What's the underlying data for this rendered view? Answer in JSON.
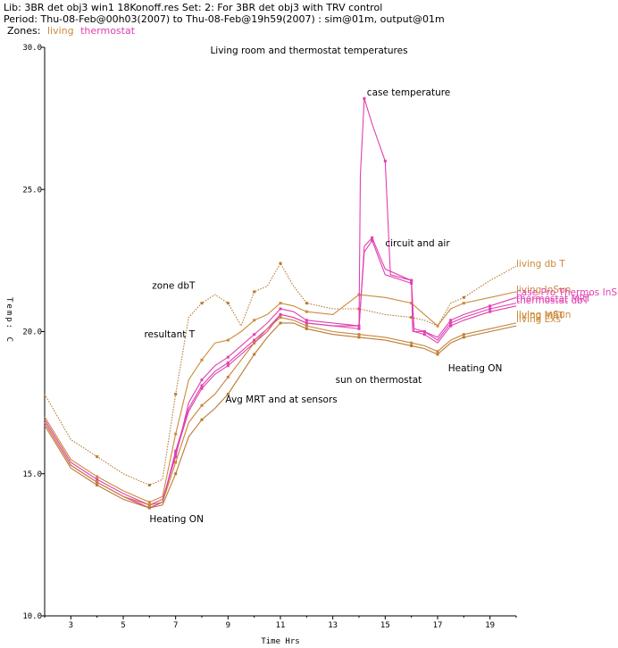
{
  "header": {
    "line1": "Lib: 3BR  det  obj3  win1  18Konoff.res Set:  2: For 3BR  det  obj3 with TRV control",
    "line2": "Period: Thu-08-Feb@00h03(2007) to Thu-08-Feb@19h59(2007) : sim@01m, output@01m",
    "zones_label": "Zones:",
    "zones": [
      {
        "name": "living",
        "color": "#cc8a3a"
      },
      {
        "name": "thermostat",
        "color": "#e040b0"
      }
    ]
  },
  "chart_data": {
    "type": "line",
    "title": "Living room and thermostat temperatures",
    "xlabel": "Time Hrs",
    "ylabel": "Temp: C",
    "xlim": [
      2,
      20
    ],
    "ylim": [
      10,
      30
    ],
    "xticks": [
      "3",
      "5",
      "7",
      "9",
      "11",
      "13",
      "15",
      "17",
      "19"
    ],
    "yticks": [
      "30.0",
      "25.0",
      "20.0",
      "15.0",
      "10.0"
    ],
    "annotations": [
      {
        "text": "case temperature",
        "x": 14.3,
        "y": 28.3
      },
      {
        "text": "circuit and air",
        "x": 15.0,
        "y": 23.0
      },
      {
        "text": "zone dbT",
        "x": 6.1,
        "y": 21.5
      },
      {
        "text": "resultant T",
        "x": 5.8,
        "y": 19.8
      },
      {
        "text": "Avg MRT and at sensors",
        "x": 8.9,
        "y": 17.5
      },
      {
        "text": "Heating ON",
        "x": 6.0,
        "y": 13.3
      },
      {
        "text": "sun on thermostat",
        "x": 13.1,
        "y": 18.2
      },
      {
        "text": "Heating ON",
        "x": 17.4,
        "y": 18.6
      }
    ],
    "series": [
      {
        "name": "living db T",
        "color": "#b87a30",
        "style": "dotted",
        "x": [
          2,
          3,
          4,
          5,
          6,
          6.5,
          7,
          7.5,
          8,
          8.5,
          9,
          9.5,
          10,
          10.5,
          11,
          11.5,
          12,
          13,
          14,
          15,
          16,
          16.5,
          17,
          17.5,
          18,
          19,
          20
        ],
        "y": [
          17.8,
          16.2,
          15.6,
          15.0,
          14.6,
          14.8,
          17.8,
          20.5,
          21.0,
          21.3,
          21.0,
          20.2,
          21.4,
          21.6,
          22.4,
          21.6,
          21.0,
          20.8,
          20.8,
          20.6,
          20.5,
          20.4,
          20.2,
          21.0,
          21.2,
          21.8,
          22.3
        ]
      },
      {
        "name": "living InSun",
        "color": "#cc8a3a",
        "style": "solid",
        "x": [
          2,
          3,
          4,
          5,
          6,
          6.5,
          7,
          7.5,
          8,
          8.5,
          9,
          9.5,
          10,
          10.5,
          11,
          11.5,
          12,
          13,
          14,
          15,
          16,
          16.5,
          17,
          17.5,
          18,
          19,
          20
        ],
        "y": [
          17.0,
          15.5,
          14.9,
          14.4,
          14.0,
          14.2,
          16.4,
          18.3,
          19.0,
          19.6,
          19.7,
          20.0,
          20.4,
          20.6,
          21.0,
          20.9,
          20.7,
          20.6,
          21.3,
          21.2,
          21.0,
          20.6,
          20.2,
          20.8,
          21.0,
          21.2,
          21.4
        ]
      },
      {
        "name": "thermostat InSun",
        "color": "#e040b0",
        "style": "solid",
        "x": [
          2,
          3,
          4,
          5,
          6,
          6.5,
          7,
          7.5,
          8,
          8.5,
          9,
          9.5,
          10,
          10.5,
          11,
          11.5,
          12,
          13,
          14,
          14.05,
          14.2,
          14.5,
          15,
          15.2,
          16,
          16.05,
          16.5,
          17,
          17.5,
          18,
          19,
          20
        ],
        "y": [
          16.9,
          15.4,
          14.8,
          14.3,
          13.9,
          14.1,
          15.6,
          17.5,
          18.3,
          18.8,
          19.1,
          19.5,
          19.9,
          20.3,
          20.8,
          20.7,
          20.4,
          20.3,
          20.2,
          25.5,
          28.2,
          27.3,
          26.0,
          22.0,
          21.8,
          20.0,
          20.0,
          19.8,
          20.4,
          20.6,
          20.9,
          21.2
        ]
      },
      {
        "name": "thermostat MRT",
        "color": "#e040b0",
        "style": "solid",
        "x": [
          2,
          3,
          4,
          5,
          6,
          6.5,
          7,
          7.5,
          8,
          8.5,
          9,
          9.5,
          10,
          10.5,
          11,
          11.5,
          12,
          13,
          14,
          14.2,
          14.5,
          15,
          16,
          16.1,
          16.5,
          17,
          17.5,
          18,
          19,
          20
        ],
        "y": [
          16.8,
          15.3,
          14.7,
          14.2,
          13.8,
          14.0,
          15.8,
          17.3,
          18.1,
          18.6,
          18.9,
          19.3,
          19.7,
          20.1,
          20.6,
          20.5,
          20.3,
          20.2,
          20.2,
          22.8,
          23.2,
          22.0,
          21.7,
          20.1,
          20.0,
          19.7,
          20.3,
          20.5,
          20.8,
          21.0
        ]
      },
      {
        "name": "thermostat dbT",
        "color": "#e040b0",
        "style": "solid",
        "x": [
          2,
          3,
          4,
          5,
          6,
          6.5,
          7,
          7.5,
          8,
          8.5,
          9,
          9.5,
          10,
          10.5,
          11,
          11.5,
          12,
          13,
          14,
          14.2,
          14.5,
          15,
          16,
          16.1,
          16.5,
          17,
          17.5,
          18,
          19,
          20
        ],
        "y": [
          16.8,
          15.3,
          14.7,
          14.2,
          13.8,
          14.0,
          15.7,
          17.2,
          18.0,
          18.5,
          18.8,
          19.2,
          19.6,
          20.0,
          20.6,
          20.5,
          20.3,
          20.2,
          20.1,
          23.0,
          23.3,
          22.2,
          21.8,
          20.0,
          19.9,
          19.6,
          20.2,
          20.4,
          20.7,
          20.9
        ]
      },
      {
        "name": "living MRT",
        "color": "#c8843a",
        "style": "solid",
        "x": [
          2,
          3,
          4,
          5,
          6,
          6.5,
          7,
          7.5,
          8,
          8.5,
          9,
          9.5,
          10,
          10.5,
          11,
          11.5,
          12,
          13,
          14,
          15,
          16,
          16.5,
          17,
          17.5,
          18,
          19,
          20
        ],
        "y": [
          16.8,
          15.3,
          14.7,
          14.2,
          13.9,
          14.0,
          15.4,
          16.8,
          17.4,
          17.8,
          18.4,
          19.0,
          19.6,
          20.1,
          20.5,
          20.4,
          20.2,
          20.0,
          19.9,
          19.8,
          19.6,
          19.5,
          19.3,
          19.7,
          19.9,
          20.1,
          20.3
        ]
      },
      {
        "name": "living Exs",
        "color": "#b87a30",
        "style": "solid",
        "x": [
          2,
          3,
          4,
          5,
          6,
          6.5,
          7,
          7.5,
          8,
          8.5,
          9,
          9.5,
          10,
          10.5,
          11,
          11.5,
          12,
          13,
          14,
          15,
          16,
          16.5,
          17,
          17.5,
          18,
          19,
          20
        ],
        "y": [
          16.7,
          15.2,
          14.6,
          14.1,
          13.8,
          13.9,
          15.0,
          16.3,
          16.9,
          17.3,
          17.8,
          18.5,
          19.2,
          19.8,
          20.3,
          20.3,
          20.1,
          19.9,
          19.8,
          19.7,
          19.5,
          19.4,
          19.2,
          19.6,
          19.8,
          20.0,
          20.2
        ]
      }
    ],
    "end_labels": [
      {
        "text": "living db T",
        "color": "#cc8a3a"
      },
      {
        "text": "living InSun",
        "color": "#cc8a3a"
      },
      {
        "text": "case Pro Thermos InSun",
        "color": "#e040b0"
      },
      {
        "text": "thermostat MRT",
        "color": "#e040b0"
      },
      {
        "text": "thermostat dbT",
        "color": "#e040b0"
      },
      {
        "text": "living InSun",
        "color": "#cc8a3a"
      },
      {
        "text": "living MRT",
        "color": "#cc8a3a"
      },
      {
        "text": "living Exs",
        "color": "#cc8a3a"
      }
    ]
  }
}
